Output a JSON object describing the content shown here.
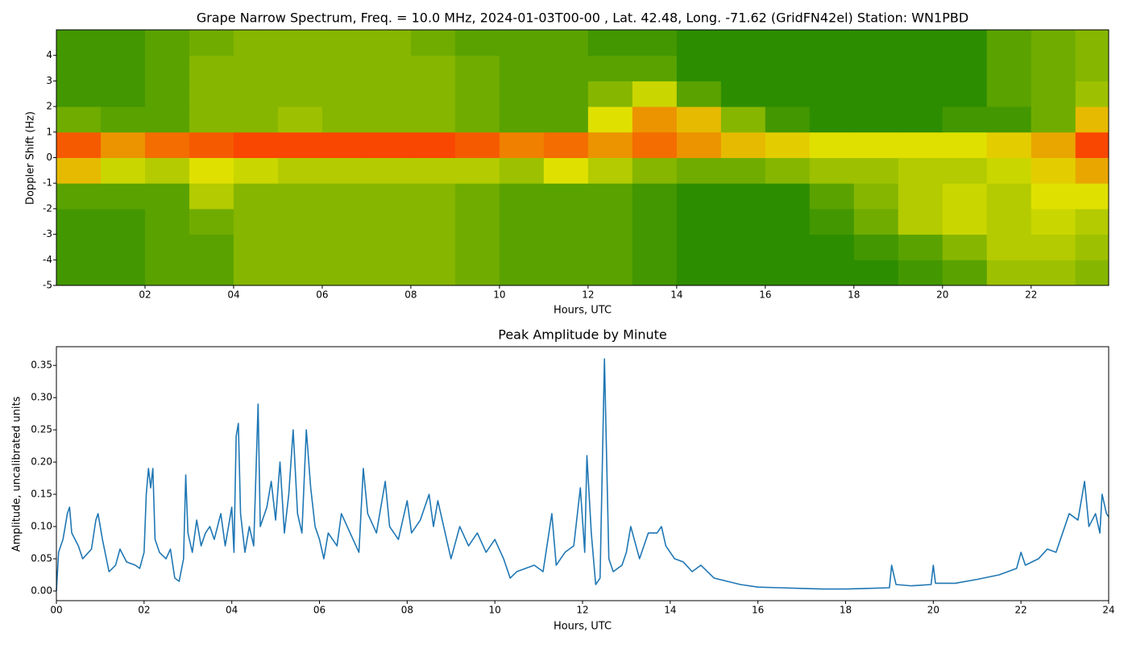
{
  "chart_data": [
    {
      "type": "heatmap",
      "title": "Grape Narrow Spectrum, Freq. = 10.0 MHz, 2024-01-03T00-00 , Lat.  42.48, Long. -71.62 (GridFN42el) Station: WN1PBD",
      "xlabel": "Hours, UTC",
      "ylabel": "Doppler Shift (Hz)",
      "xlim": [
        0,
        23.75
      ],
      "ylim": [
        -5,
        5
      ],
      "xticks": [
        {
          "value": 2,
          "label": "02"
        },
        {
          "value": 4,
          "label": "04"
        },
        {
          "value": 6,
          "label": "06"
        },
        {
          "value": 8,
          "label": "08"
        },
        {
          "value": 10,
          "label": "10"
        },
        {
          "value": 12,
          "label": "12"
        },
        {
          "value": 14,
          "label": "14"
        },
        {
          "value": 16,
          "label": "16"
        },
        {
          "value": 18,
          "label": "18"
        },
        {
          "value": 20,
          "label": "20"
        },
        {
          "value": 22,
          "label": "22"
        }
      ],
      "yticks": [
        4,
        3,
        2,
        1,
        0,
        -1,
        -2,
        -3,
        -4,
        -5
      ],
      "xbins": [
        0,
        1,
        2,
        3,
        4,
        5,
        6,
        7,
        8,
        9,
        10,
        11,
        12,
        13,
        14,
        15,
        16,
        17,
        18,
        19,
        20,
        21,
        22,
        23,
        23.75
      ],
      "ybins": [
        -5,
        -4,
        -3,
        -2,
        -1,
        0,
        1,
        2,
        3,
        4,
        5
      ],
      "colorscale": [
        [
          0,
          "#007800"
        ],
        [
          0.5,
          "#e0e000"
        ],
        [
          1,
          "#ff2000"
        ]
      ],
      "z": [
        [
          0.15,
          0.15,
          0.2,
          0.2,
          0.3,
          0.3,
          0.3,
          0.3,
          0.3,
          0.25,
          0.2,
          0.2,
          0.2,
          0.15,
          0.1,
          0.1,
          0.1,
          0.1,
          0.1,
          0.15,
          0.2,
          0.35,
          0.35,
          0.3
        ],
        [
          0.15,
          0.15,
          0.2,
          0.2,
          0.3,
          0.3,
          0.3,
          0.3,
          0.3,
          0.25,
          0.2,
          0.2,
          0.2,
          0.15,
          0.1,
          0.1,
          0.1,
          0.1,
          0.15,
          0.2,
          0.3,
          0.4,
          0.4,
          0.35
        ],
        [
          0.15,
          0.15,
          0.2,
          0.25,
          0.3,
          0.3,
          0.3,
          0.3,
          0.3,
          0.25,
          0.2,
          0.2,
          0.2,
          0.15,
          0.1,
          0.1,
          0.1,
          0.15,
          0.25,
          0.4,
          0.45,
          0.4,
          0.45,
          0.4
        ],
        [
          0.2,
          0.2,
          0.2,
          0.4,
          0.3,
          0.3,
          0.3,
          0.3,
          0.3,
          0.25,
          0.2,
          0.2,
          0.2,
          0.15,
          0.1,
          0.1,
          0.1,
          0.2,
          0.3,
          0.4,
          0.45,
          0.4,
          0.5,
          0.5
        ],
        [
          0.6,
          0.45,
          0.4,
          0.5,
          0.45,
          0.4,
          0.4,
          0.4,
          0.4,
          0.4,
          0.35,
          0.5,
          0.4,
          0.3,
          0.25,
          0.25,
          0.3,
          0.35,
          0.35,
          0.4,
          0.4,
          0.45,
          0.55,
          0.65
        ],
        [
          0.85,
          0.7,
          0.8,
          0.85,
          0.9,
          0.9,
          0.9,
          0.9,
          0.9,
          0.85,
          0.75,
          0.8,
          0.7,
          0.8,
          0.7,
          0.6,
          0.55,
          0.5,
          0.5,
          0.5,
          0.5,
          0.55,
          0.65,
          0.9
        ],
        [
          0.25,
          0.2,
          0.2,
          0.3,
          0.3,
          0.35,
          0.3,
          0.3,
          0.3,
          0.25,
          0.2,
          0.2,
          0.5,
          0.7,
          0.6,
          0.3,
          0.15,
          0.1,
          0.1,
          0.1,
          0.15,
          0.15,
          0.25,
          0.6
        ],
        [
          0.15,
          0.15,
          0.2,
          0.3,
          0.3,
          0.3,
          0.3,
          0.3,
          0.3,
          0.25,
          0.2,
          0.2,
          0.3,
          0.45,
          0.2,
          0.1,
          0.1,
          0.1,
          0.1,
          0.1,
          0.1,
          0.2,
          0.25,
          0.35
        ],
        [
          0.15,
          0.15,
          0.2,
          0.3,
          0.3,
          0.3,
          0.3,
          0.3,
          0.3,
          0.25,
          0.2,
          0.2,
          0.2,
          0.2,
          0.1,
          0.1,
          0.1,
          0.1,
          0.1,
          0.1,
          0.1,
          0.2,
          0.25,
          0.3
        ],
        [
          0.15,
          0.15,
          0.2,
          0.25,
          0.3,
          0.3,
          0.3,
          0.3,
          0.25,
          0.2,
          0.2,
          0.2,
          0.15,
          0.15,
          0.1,
          0.1,
          0.1,
          0.1,
          0.1,
          0.1,
          0.1,
          0.2,
          0.25,
          0.3
        ]
      ]
    },
    {
      "type": "line",
      "title": "Peak Amplitude by Minute",
      "xlabel": "Hours, UTC",
      "ylabel": "Amplitude, uncalibrated units",
      "xlim": [
        0,
        24
      ],
      "ylim": [
        -0.015,
        0.379
      ],
      "xticks": [
        {
          "value": 0,
          "label": "00"
        },
        {
          "value": 2,
          "label": "02"
        },
        {
          "value": 4,
          "label": "04"
        },
        {
          "value": 6,
          "label": "06"
        },
        {
          "value": 8,
          "label": "08"
        },
        {
          "value": 10,
          "label": "10"
        },
        {
          "value": 12,
          "label": "12"
        },
        {
          "value": 14,
          "label": "14"
        },
        {
          "value": 16,
          "label": "16"
        },
        {
          "value": 18,
          "label": "18"
        },
        {
          "value": 20,
          "label": "20"
        },
        {
          "value": 22,
          "label": "22"
        },
        {
          "value": 24,
          "label": "24"
        }
      ],
      "yticks": [
        {
          "value": 0,
          "label": "0.00"
        },
        {
          "value": 0.05,
          "label": "0.05"
        },
        {
          "value": 0.1,
          "label": "0.10"
        },
        {
          "value": 0.15,
          "label": "0.15"
        },
        {
          "value": 0.2,
          "label": "0.20"
        },
        {
          "value": 0.25,
          "label": "0.25"
        },
        {
          "value": 0.3,
          "label": "0.30"
        },
        {
          "value": 0.35,
          "label": "0.35"
        }
      ],
      "color": "#1f77b4",
      "x": [
        0,
        0.05,
        0.15,
        0.2,
        0.25,
        0.3,
        0.35,
        0.5,
        0.6,
        0.8,
        0.9,
        0.95,
        1.05,
        1.2,
        1.35,
        1.45,
        1.6,
        1.8,
        1.9,
        2,
        2.05,
        2.1,
        2.15,
        2.2,
        2.25,
        2.35,
        2.5,
        2.6,
        2.7,
        2.8,
        2.9,
        2.95,
        3,
        3.1,
        3.2,
        3.3,
        3.4,
        3.5,
        3.6,
        3.75,
        3.85,
        4,
        4.05,
        4.1,
        4.15,
        4.2,
        4.3,
        4.4,
        4.5,
        4.6,
        4.65,
        4.8,
        4.9,
        5,
        5.1,
        5.2,
        5.3,
        5.4,
        5.5,
        5.6,
        5.7,
        5.8,
        5.9,
        6,
        6.1,
        6.2,
        6.4,
        6.5,
        6.7,
        6.9,
        7,
        7.1,
        7.3,
        7.5,
        7.6,
        7.8,
        8,
        8.1,
        8.3,
        8.5,
        8.6,
        8.7,
        8.9,
        9,
        9.2,
        9.4,
        9.6,
        9.8,
        10,
        10.2,
        10.35,
        10.5,
        10.7,
        10.9,
        11.1,
        11.3,
        11.4,
        11.6,
        11.8,
        11.95,
        12.05,
        12.1,
        12.2,
        12.3,
        12.4,
        12.5,
        12.6,
        12.7,
        12.9,
        13,
        13.1,
        13.3,
        13.5,
        13.7,
        13.8,
        13.9,
        14.1,
        14.3,
        14.5,
        14.7,
        15,
        15.3,
        15.6,
        16,
        16.5,
        17,
        17.5,
        18,
        18.5,
        19,
        19.05,
        19.15,
        19.5,
        19.95,
        20,
        20.05,
        20.5,
        21,
        21.5,
        21.9,
        22,
        22.1,
        22.4,
        22.6,
        22.8,
        23,
        23.1,
        23.3,
        23.45,
        23.55,
        23.7,
        23.8,
        23.85,
        23.95,
        24
      ],
      "values": [
        0,
        0.06,
        0.08,
        0.1,
        0.12,
        0.13,
        0.09,
        0.07,
        0.05,
        0.065,
        0.11,
        0.12,
        0.08,
        0.03,
        0.04,
        0.065,
        0.045,
        0.04,
        0.035,
        0.06,
        0.15,
        0.19,
        0.16,
        0.19,
        0.08,
        0.06,
        0.05,
        0.065,
        0.02,
        0.015,
        0.05,
        0.18,
        0.09,
        0.06,
        0.11,
        0.07,
        0.09,
        0.1,
        0.08,
        0.12,
        0.07,
        0.13,
        0.06,
        0.24,
        0.26,
        0.12,
        0.06,
        0.1,
        0.07,
        0.29,
        0.1,
        0.13,
        0.17,
        0.11,
        0.2,
        0.09,
        0.15,
        0.25,
        0.12,
        0.09,
        0.25,
        0.16,
        0.1,
        0.08,
        0.05,
        0.09,
        0.07,
        0.12,
        0.09,
        0.06,
        0.19,
        0.12,
        0.09,
        0.17,
        0.1,
        0.08,
        0.14,
        0.09,
        0.11,
        0.15,
        0.1,
        0.14,
        0.08,
        0.05,
        0.1,
        0.07,
        0.09,
        0.06,
        0.08,
        0.05,
        0.02,
        0.03,
        0.035,
        0.04,
        0.03,
        0.12,
        0.04,
        0.06,
        0.07,
        0.16,
        0.06,
        0.21,
        0.09,
        0.01,
        0.02,
        0.36,
        0.05,
        0.03,
        0.04,
        0.06,
        0.1,
        0.05,
        0.09,
        0.09,
        0.1,
        0.07,
        0.05,
        0.045,
        0.03,
        0.04,
        0.02,
        0.015,
        0.01,
        0.006,
        0.005,
        0.004,
        0.003,
        0.003,
        0.004,
        0.005,
        0.04,
        0.01,
        0.008,
        0.01,
        0.04,
        0.012,
        0.012,
        0.018,
        0.025,
        0.035,
        0.06,
        0.04,
        0.05,
        0.065,
        0.06,
        0.1,
        0.12,
        0.11,
        0.17,
        0.1,
        0.12,
        0.09,
        0.15,
        0.12,
        0.115
      ]
    }
  ]
}
